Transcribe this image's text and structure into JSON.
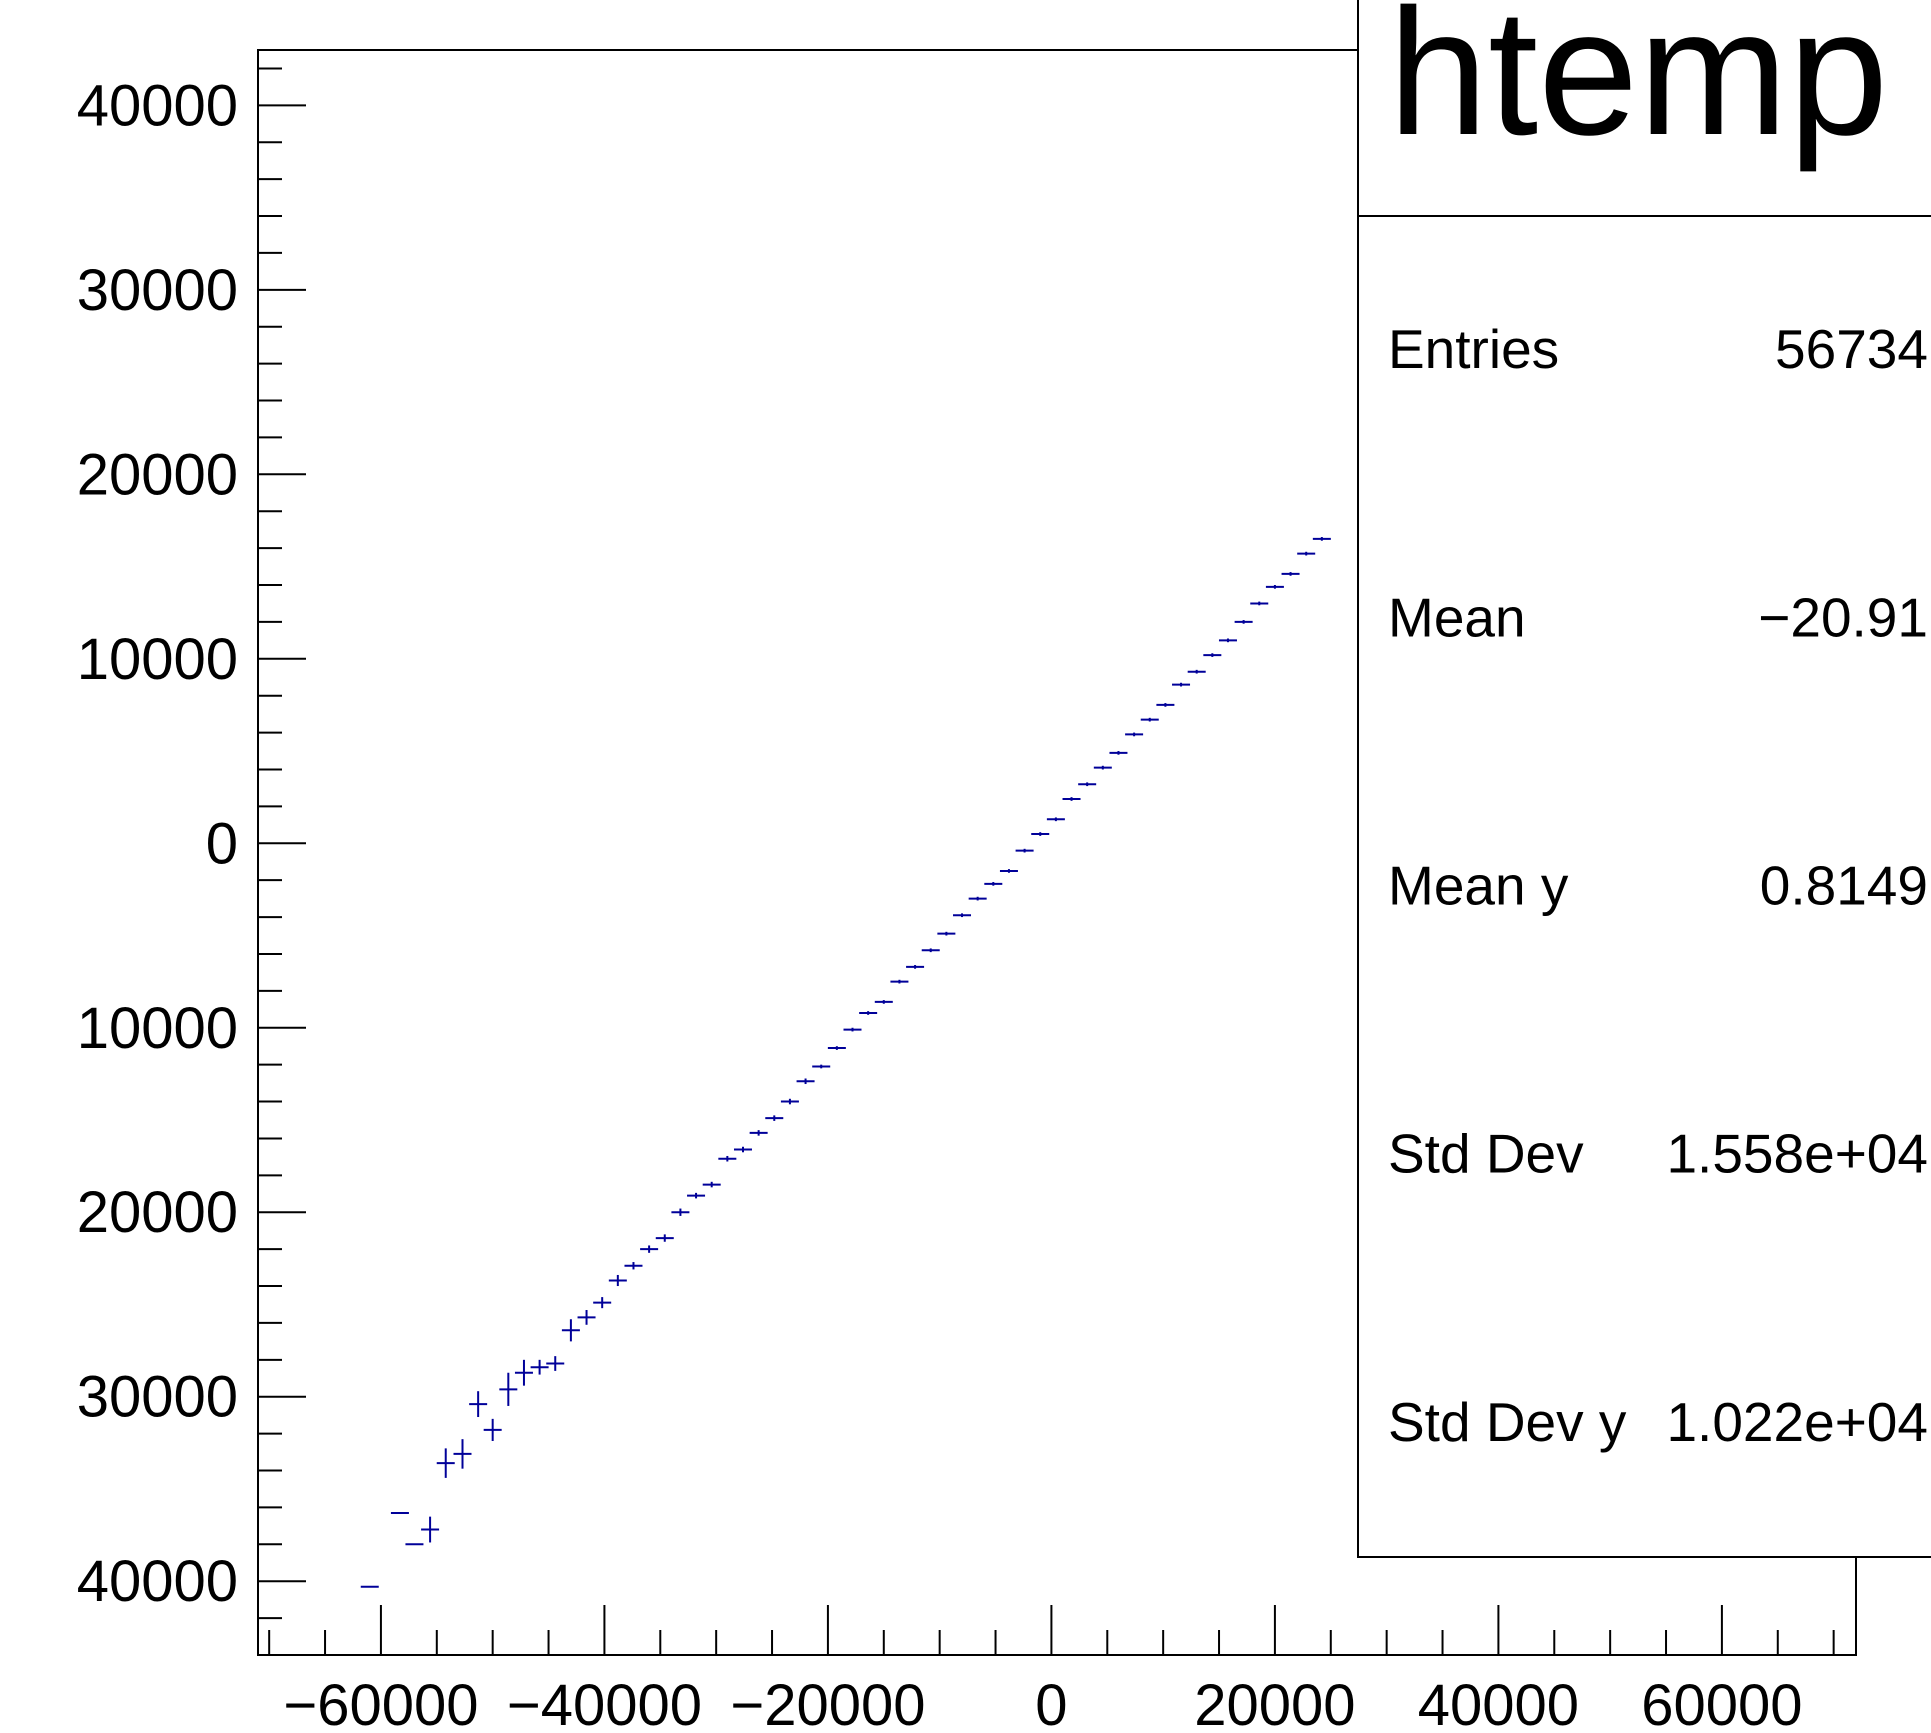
{
  "chart_data": {
    "type": "scatter",
    "subtype": "profile-with-error-bars",
    "title": "htemp",
    "xlabel": "",
    "ylabel": "",
    "xlim": [
      -71000,
      72000
    ],
    "ylim": [
      -44000,
      43000
    ],
    "x_ticks": [
      -60000,
      -40000,
      -20000,
      0,
      20000,
      40000,
      60000
    ],
    "x_tick_labels": [
      "−60000",
      "−40000",
      "−20000",
      "0",
      "20000",
      "40000",
      "60000"
    ],
    "y_ticks": [
      40000,
      30000,
      20000,
      10000,
      0,
      -10000,
      -20000,
      -30000,
      -40000
    ],
    "y_tick_labels": [
      "40000",
      "30000",
      "20000",
      "10000",
      "0",
      "10000",
      "20000",
      "30000",
      "40000"
    ],
    "grid": false,
    "legend": "none",
    "series": [
      {
        "color": "#000099",
        "points": [
          [
            -61000,
            -40300,
            0
          ],
          [
            -58300,
            -36300,
            0
          ],
          [
            -57000,
            -38000,
            0
          ],
          [
            -55600,
            -37200,
            700
          ],
          [
            -54200,
            -33600,
            800
          ],
          [
            -52700,
            -33100,
            800
          ],
          [
            -51300,
            -30400,
            700
          ],
          [
            -50000,
            -31800,
            600
          ],
          [
            -48600,
            -29600,
            900
          ],
          [
            -47200,
            -28700,
            700
          ],
          [
            -45800,
            -28400,
            400
          ],
          [
            -44400,
            -28200,
            400
          ],
          [
            -43000,
            -26400,
            600
          ],
          [
            -41600,
            -25700,
            400
          ],
          [
            -40200,
            -24900,
            300
          ],
          [
            -38800,
            -23700,
            300
          ],
          [
            -37400,
            -22900,
            200
          ],
          [
            -36000,
            -22000,
            200
          ],
          [
            -34600,
            -21400,
            200
          ],
          [
            -33200,
            -20000,
            200
          ],
          [
            -31800,
            -19100,
            150
          ],
          [
            -30400,
            -18500,
            150
          ],
          [
            -29000,
            -17100,
            150
          ],
          [
            -27600,
            -16600,
            150
          ],
          [
            -26200,
            -15700,
            150
          ],
          [
            -24800,
            -14900,
            150
          ],
          [
            -23400,
            -14000,
            150
          ],
          [
            -22000,
            -12900,
            150
          ],
          [
            -20600,
            -12100,
            100
          ],
          [
            -19200,
            -11100,
            100
          ],
          [
            -17800,
            -10100,
            100
          ],
          [
            -16400,
            -9200,
            100
          ],
          [
            -15000,
            -8600,
            100
          ],
          [
            -13600,
            -7500,
            100
          ],
          [
            -12200,
            -6700,
            100
          ],
          [
            -10800,
            -5800,
            100
          ],
          [
            -9400,
            -4900,
            100
          ],
          [
            -8000,
            -3900,
            100
          ],
          [
            -6600,
            -3000,
            100
          ],
          [
            -5200,
            -2200,
            100
          ],
          [
            -3800,
            -1500,
            100
          ],
          [
            -2400,
            -400,
            100
          ],
          [
            -1000,
            500,
            100
          ],
          [
            400,
            1300,
            100
          ],
          [
            1800,
            2400,
            100
          ],
          [
            3200,
            3200,
            100
          ],
          [
            4600,
            4100,
            100
          ],
          [
            6000,
            4900,
            100
          ],
          [
            7400,
            5900,
            100
          ],
          [
            8800,
            6700,
            100
          ],
          [
            10200,
            7500,
            100
          ],
          [
            11600,
            8600,
            100
          ],
          [
            13000,
            9300,
            100
          ],
          [
            14400,
            10200,
            100
          ],
          [
            15800,
            11000,
            100
          ],
          [
            17200,
            12000,
            100
          ],
          [
            18600,
            13000,
            100
          ],
          [
            20000,
            13900,
            100
          ],
          [
            21400,
            14600,
            100
          ],
          [
            22800,
            15700,
            100
          ],
          [
            24200,
            16500,
            100
          ]
        ]
      }
    ],
    "stats_box": {
      "title": "htemp",
      "rows": [
        {
          "label": "Entries",
          "value": "56734"
        },
        {
          "label": "Mean",
          "value": "−20.91"
        },
        {
          "label": "Mean y",
          "value": "0.8149"
        },
        {
          "label": "Std Dev",
          "value": "1.558e+04"
        },
        {
          "label": "Std Dev y",
          "value": "1.022e+04"
        }
      ]
    }
  }
}
